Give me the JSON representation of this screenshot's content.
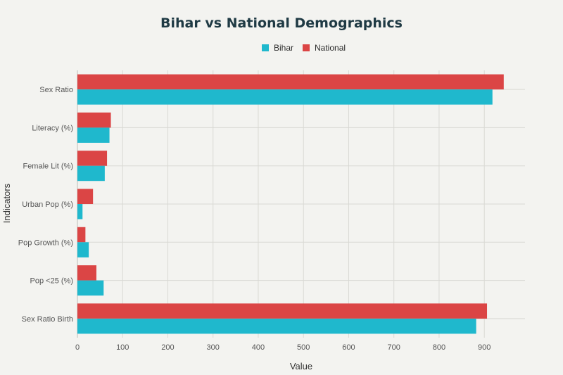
{
  "chart_data": {
    "type": "bar",
    "orientation": "horizontal",
    "title": "Bihar vs National Demographics",
    "xlabel": "Value",
    "ylabel": "Indicators",
    "categories": [
      "Sex Ratio",
      "Literacy (%)",
      "Female Lit (%)",
      "Urban Pop (%)",
      "Pop Growth (%)",
      "Pop <25 (%)",
      "Sex Ratio Birth"
    ],
    "series": [
      {
        "name": "Bihar",
        "color": "#1fb8cd",
        "values": [
          918,
          70.9,
          60.5,
          11.3,
          25.1,
          58,
          882
        ]
      },
      {
        "name": "National",
        "color": "#db4545",
        "values": [
          943,
          74,
          65.5,
          34.5,
          17.7,
          42,
          906
        ]
      }
    ],
    "xlim": [
      0,
      990
    ],
    "xticks": [
      0,
      100,
      200,
      300,
      400,
      500,
      600,
      700,
      800,
      900
    ],
    "grid": true,
    "legend_position": "top-center"
  }
}
